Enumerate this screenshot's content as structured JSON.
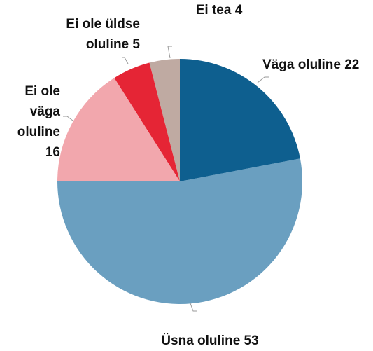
{
  "chart_data": {
    "type": "pie",
    "categories": [
      "Väga oluline",
      "Üsna oluline",
      "Ei ole väga oluline",
      "Ei ole üldse oluline",
      "Ei tea"
    ],
    "values": [
      22,
      53,
      16,
      5,
      4
    ],
    "colors": [
      "#0e5f8f",
      "#6a9fc0",
      "#f2a7ad",
      "#e52535",
      "#bfaaa2"
    ]
  }
}
